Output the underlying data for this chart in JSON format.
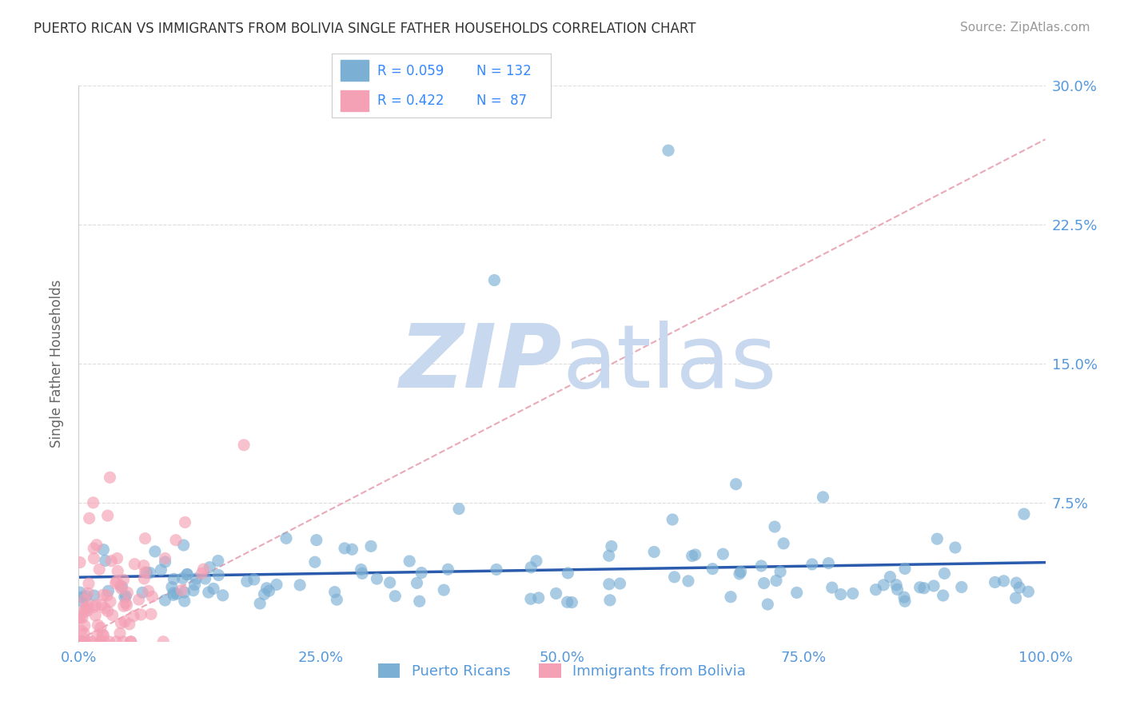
{
  "title": "PUERTO RICAN VS IMMIGRANTS FROM BOLIVIA SINGLE FATHER HOUSEHOLDS CORRELATION CHART",
  "source": "Source: ZipAtlas.com",
  "ylabel": "Single Father Households",
  "xlabel": "",
  "xlim": [
    0.0,
    100.0
  ],
  "ylim": [
    0.0,
    0.3
  ],
  "yticks": [
    0.0,
    0.075,
    0.15,
    0.225,
    0.3
  ],
  "ytick_labels": [
    "",
    "7.5%",
    "15.0%",
    "22.5%",
    "30.0%"
  ],
  "xtick_labels": [
    "0.0%",
    "25.0%",
    "50.0%",
    "75.0%",
    "100.0%"
  ],
  "xtick_positions": [
    0,
    25,
    50,
    75,
    100
  ],
  "blue_R": 0.059,
  "blue_N": 132,
  "pink_R": 0.422,
  "pink_N": 87,
  "blue_color": "#7BAFD4",
  "pink_color": "#F4A0B5",
  "blue_line_color": "#2B5BAD",
  "pink_line_color": "#E8A0B0",
  "watermark_zip": "ZIP",
  "watermark_atlas": "atlas",
  "watermark_color": "#C8D8EE",
  "title_color": "#333333",
  "axis_label_color": "#5599DD",
  "legend_R_color": "#3388FF",
  "background_color": "#FFFFFF",
  "grid_color": "#DDDDDD",
  "legend_border_color": "#CCCCCC"
}
